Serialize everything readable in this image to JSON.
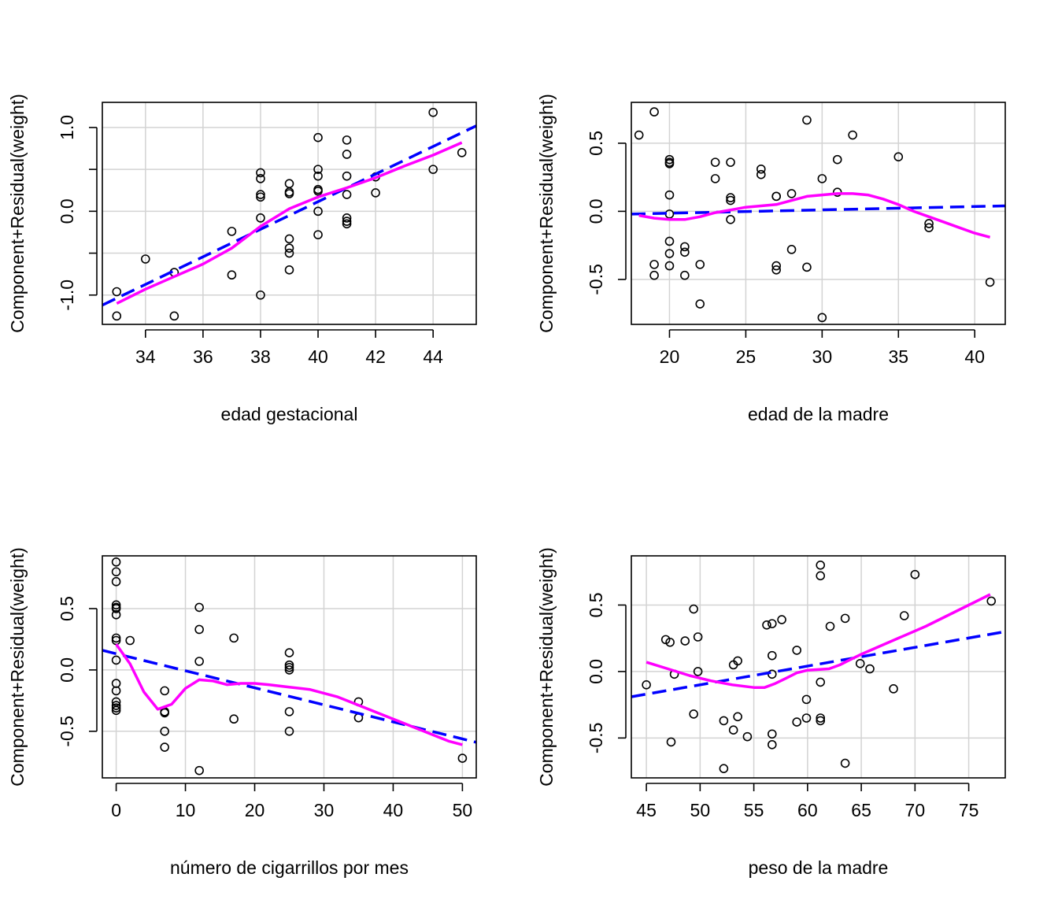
{
  "figure": {
    "title": "",
    "colors": {
      "dashed_line": "#0000ff",
      "smooth_line": "#ff00ff",
      "grid": "#d3d3d3",
      "points": "#000000"
    }
  },
  "chart_data": [
    {
      "type": "scatter",
      "xlabel": "edad gestacional",
      "ylabel": "Component+Residual(weight)",
      "xlim": [
        32.5,
        45.5
      ],
      "ylim": [
        -1.35,
        1.3
      ],
      "x_ticks": [
        34,
        36,
        38,
        40,
        42,
        44
      ],
      "y_ticks": [
        -1.0,
        -0.5,
        0.0,
        0.5,
        1.0
      ],
      "y_tick_labels": [
        "-1.0",
        "",
        "0.0",
        "",
        "1.0"
      ],
      "grid": true,
      "points": [
        [
          33,
          -0.96
        ],
        [
          33,
          -1.25
        ],
        [
          34,
          -0.57
        ],
        [
          35,
          -0.73
        ],
        [
          35,
          -1.25
        ],
        [
          37,
          -0.24
        ],
        [
          37,
          -0.76
        ],
        [
          38,
          0.46
        ],
        [
          38,
          0.39
        ],
        [
          38,
          0.2
        ],
        [
          38,
          0.17
        ],
        [
          38,
          -0.08
        ],
        [
          38,
          -1.0
        ],
        [
          39,
          0.33
        ],
        [
          39,
          0.23
        ],
        [
          39,
          0.21
        ],
        [
          39,
          -0.33
        ],
        [
          39,
          -0.44
        ],
        [
          39,
          -0.5
        ],
        [
          39,
          -0.7
        ],
        [
          40,
          0.88
        ],
        [
          40,
          0.5
        ],
        [
          40,
          0.42
        ],
        [
          40,
          0.26
        ],
        [
          40,
          0.24
        ],
        [
          40,
          0.0
        ],
        [
          40,
          -0.28
        ],
        [
          41,
          0.85
        ],
        [
          41,
          0.68
        ],
        [
          41,
          0.42
        ],
        [
          41,
          0.2
        ],
        [
          41,
          -0.08
        ],
        [
          41,
          -0.12
        ],
        [
          41,
          -0.15
        ],
        [
          42,
          0.41
        ],
        [
          42,
          0.22
        ],
        [
          44,
          1.18
        ],
        [
          44,
          0.5
        ],
        [
          45,
          0.7
        ]
      ],
      "dashed_line": [
        [
          32.5,
          -1.12
        ],
        [
          45.5,
          1.02
        ]
      ],
      "smooth_line": [
        [
          33,
          -1.1
        ],
        [
          34,
          -0.93
        ],
        [
          35,
          -0.78
        ],
        [
          36,
          -0.63
        ],
        [
          37,
          -0.44
        ],
        [
          38,
          -0.18
        ],
        [
          39,
          0.03
        ],
        [
          40,
          0.17
        ],
        [
          41,
          0.28
        ],
        [
          42,
          0.4
        ],
        [
          43,
          0.54
        ],
        [
          44,
          0.67
        ],
        [
          45,
          0.82
        ]
      ]
    },
    {
      "type": "scatter",
      "xlabel": "edad de la madre",
      "ylabel": "Component+Residual(weight)",
      "xlim": [
        17.5,
        42
      ],
      "ylim": [
        -0.83,
        0.8
      ],
      "x_ticks": [
        20,
        25,
        30,
        35,
        40
      ],
      "y_ticks": [
        -0.5,
        0.0,
        0.5
      ],
      "y_tick_labels": [
        "-0.5",
        "0.0",
        "0.5"
      ],
      "grid": true,
      "points": [
        [
          18,
          0.56
        ],
        [
          19,
          0.73
        ],
        [
          19,
          -0.39
        ],
        [
          19,
          -0.47
        ],
        [
          20,
          0.38
        ],
        [
          20,
          0.36
        ],
        [
          20,
          0.35
        ],
        [
          20,
          0.12
        ],
        [
          20,
          -0.02
        ],
        [
          20,
          -0.22
        ],
        [
          20,
          -0.31
        ],
        [
          20,
          -0.4
        ],
        [
          21,
          -0.26
        ],
        [
          21,
          -0.3
        ],
        [
          21,
          -0.47
        ],
        [
          22,
          -0.39
        ],
        [
          22,
          -0.68
        ],
        [
          23,
          0.36
        ],
        [
          23,
          0.24
        ],
        [
          24,
          0.36
        ],
        [
          24,
          0.1
        ],
        [
          24,
          0.08
        ],
        [
          24,
          -0.06
        ],
        [
          26,
          0.31
        ],
        [
          26,
          0.27
        ],
        [
          27,
          0.11
        ],
        [
          27,
          0.11
        ],
        [
          27,
          -0.4
        ],
        [
          27,
          -0.43
        ],
        [
          28,
          0.13
        ],
        [
          28,
          -0.28
        ],
        [
          29,
          0.67
        ],
        [
          29,
          -0.41
        ],
        [
          30,
          0.24
        ],
        [
          30,
          -0.78
        ],
        [
          31,
          0.38
        ],
        [
          31,
          0.14
        ],
        [
          32,
          0.56
        ],
        [
          35,
          0.4
        ],
        [
          37,
          -0.09
        ],
        [
          37,
          -0.12
        ],
        [
          41,
          -0.52
        ]
      ],
      "dashed_line": [
        [
          17.5,
          -0.02
        ],
        [
          42,
          0.04
        ]
      ],
      "smooth_line": [
        [
          18,
          -0.03
        ],
        [
          19,
          -0.05
        ],
        [
          20,
          -0.06
        ],
        [
          21,
          -0.06
        ],
        [
          22,
          -0.04
        ],
        [
          23,
          -0.01
        ],
        [
          24,
          0.01
        ],
        [
          25,
          0.03
        ],
        [
          26,
          0.04
        ],
        [
          27,
          0.05
        ],
        [
          28,
          0.08
        ],
        [
          29,
          0.11
        ],
        [
          30,
          0.12
        ],
        [
          31,
          0.13
        ],
        [
          32,
          0.13
        ],
        [
          33,
          0.12
        ],
        [
          34,
          0.09
        ],
        [
          35,
          0.05
        ],
        [
          36,
          0.0
        ],
        [
          37,
          -0.04
        ],
        [
          38,
          -0.08
        ],
        [
          39,
          -0.12
        ],
        [
          40,
          -0.16
        ],
        [
          41,
          -0.19
        ]
      ]
    },
    {
      "type": "scatter",
      "xlabel": "número de cigarrillos por mes",
      "ylabel": "Component+Residual(weight)",
      "xlim": [
        -2,
        52
      ],
      "ylim": [
        -0.88,
        0.93
      ],
      "x_ticks": [
        0,
        10,
        20,
        30,
        40,
        50
      ],
      "y_ticks": [
        -0.5,
        0.0,
        0.5
      ],
      "y_tick_labels": [
        "-0.5",
        "0.0",
        "0.5"
      ],
      "grid": true,
      "points": [
        [
          0,
          0.88
        ],
        [
          0,
          0.8
        ],
        [
          0,
          0.72
        ],
        [
          0,
          0.53
        ],
        [
          0,
          0.51
        ],
        [
          0,
          0.5
        ],
        [
          0,
          0.45
        ],
        [
          0,
          0.26
        ],
        [
          0,
          0.24
        ],
        [
          0,
          0.08
        ],
        [
          0,
          -0.11
        ],
        [
          0,
          -0.17
        ],
        [
          0,
          -0.26
        ],
        [
          0,
          -0.29
        ],
        [
          0,
          -0.31
        ],
        [
          0,
          -0.33
        ],
        [
          2,
          0.24
        ],
        [
          7,
          -0.17
        ],
        [
          7,
          -0.34
        ],
        [
          7,
          -0.35
        ],
        [
          7,
          -0.5
        ],
        [
          7,
          -0.63
        ],
        [
          12,
          0.51
        ],
        [
          12,
          0.33
        ],
        [
          12,
          0.07
        ],
        [
          12,
          -0.82
        ],
        [
          17,
          0.26
        ],
        [
          17,
          -0.4
        ],
        [
          25,
          0.14
        ],
        [
          25,
          0.04
        ],
        [
          25,
          0.02
        ],
        [
          25,
          0.0
        ],
        [
          25,
          -0.34
        ],
        [
          25,
          -0.5
        ],
        [
          35,
          -0.26
        ],
        [
          35,
          -0.39
        ],
        [
          50,
          -0.72
        ]
      ],
      "dashed_line": [
        [
          -2,
          0.16
        ],
        [
          52,
          -0.59
        ]
      ],
      "smooth_line": [
        [
          0,
          0.21
        ],
        [
          2,
          0.05
        ],
        [
          4,
          -0.18
        ],
        [
          6,
          -0.32
        ],
        [
          8,
          -0.28
        ],
        [
          10,
          -0.15
        ],
        [
          12,
          -0.08
        ],
        [
          14,
          -0.09
        ],
        [
          16,
          -0.12
        ],
        [
          18,
          -0.11
        ],
        [
          20,
          -0.11
        ],
        [
          22,
          -0.12
        ],
        [
          25,
          -0.14
        ],
        [
          28,
          -0.16
        ],
        [
          32,
          -0.22
        ],
        [
          36,
          -0.31
        ],
        [
          40,
          -0.4
        ],
        [
          44,
          -0.49
        ],
        [
          48,
          -0.58
        ],
        [
          50,
          -0.61
        ]
      ]
    },
    {
      "type": "scatter",
      "xlabel": "peso de la madre",
      "ylabel": "Component+Residual(weight)",
      "xlim": [
        43.6,
        78.4
      ],
      "ylim": [
        -0.8,
        0.87
      ],
      "x_ticks": [
        45,
        50,
        55,
        60,
        65,
        70,
        75
      ],
      "y_ticks": [
        -0.5,
        0.0,
        0.5
      ],
      "y_tick_labels": [
        "-0.5",
        "0.0",
        "0.5"
      ],
      "grid": true,
      "points": [
        [
          45,
          -0.1
        ],
        [
          46.8,
          0.24
        ],
        [
          47.2,
          0.22
        ],
        [
          47.3,
          -0.53
        ],
        [
          47.6,
          -0.02
        ],
        [
          48.6,
          0.23
        ],
        [
          49.4,
          0.47
        ],
        [
          49.4,
          -0.32
        ],
        [
          49.8,
          0.26
        ],
        [
          49.8,
          0.0
        ],
        [
          52.2,
          -0.37
        ],
        [
          52.2,
          -0.73
        ],
        [
          53.1,
          0.05
        ],
        [
          53.1,
          -0.44
        ],
        [
          53.5,
          0.08
        ],
        [
          53.5,
          -0.34
        ],
        [
          54.4,
          -0.49
        ],
        [
          56.2,
          0.35
        ],
        [
          56.7,
          0.36
        ],
        [
          56.7,
          0.12
        ],
        [
          56.7,
          -0.02
        ],
        [
          56.7,
          -0.47
        ],
        [
          56.7,
          -0.55
        ],
        [
          57.6,
          0.39
        ],
        [
          59,
          0.16
        ],
        [
          59,
          -0.38
        ],
        [
          59.9,
          -0.21
        ],
        [
          59.9,
          -0.35
        ],
        [
          61.2,
          0.8
        ],
        [
          61.2,
          0.72
        ],
        [
          61.2,
          -0.08
        ],
        [
          61.2,
          -0.35
        ],
        [
          61.2,
          -0.37
        ],
        [
          62.1,
          0.34
        ],
        [
          63.5,
          0.4
        ],
        [
          63.5,
          -0.69
        ],
        [
          64.9,
          0.06
        ],
        [
          65.8,
          0.02
        ],
        [
          68,
          -0.13
        ],
        [
          69,
          0.42
        ],
        [
          70,
          0.73
        ],
        [
          77.1,
          0.53
        ]
      ],
      "dashed_line": [
        [
          43.6,
          -0.19
        ],
        [
          78.4,
          0.3
        ]
      ],
      "smooth_line": [
        [
          45,
          0.07
        ],
        [
          47,
          0.02
        ],
        [
          49,
          -0.03
        ],
        [
          51,
          -0.07
        ],
        [
          53,
          -0.1
        ],
        [
          55,
          -0.12
        ],
        [
          56,
          -0.12
        ],
        [
          57,
          -0.09
        ],
        [
          58,
          -0.05
        ],
        [
          59,
          -0.01
        ],
        [
          60,
          0.01
        ],
        [
          62,
          0.02
        ],
        [
          63,
          0.05
        ],
        [
          64,
          0.09
        ],
        [
          65,
          0.13
        ],
        [
          67,
          0.2
        ],
        [
          69,
          0.27
        ],
        [
          71,
          0.34
        ],
        [
          73,
          0.42
        ],
        [
          75,
          0.5
        ],
        [
          77,
          0.58
        ]
      ]
    }
  ]
}
